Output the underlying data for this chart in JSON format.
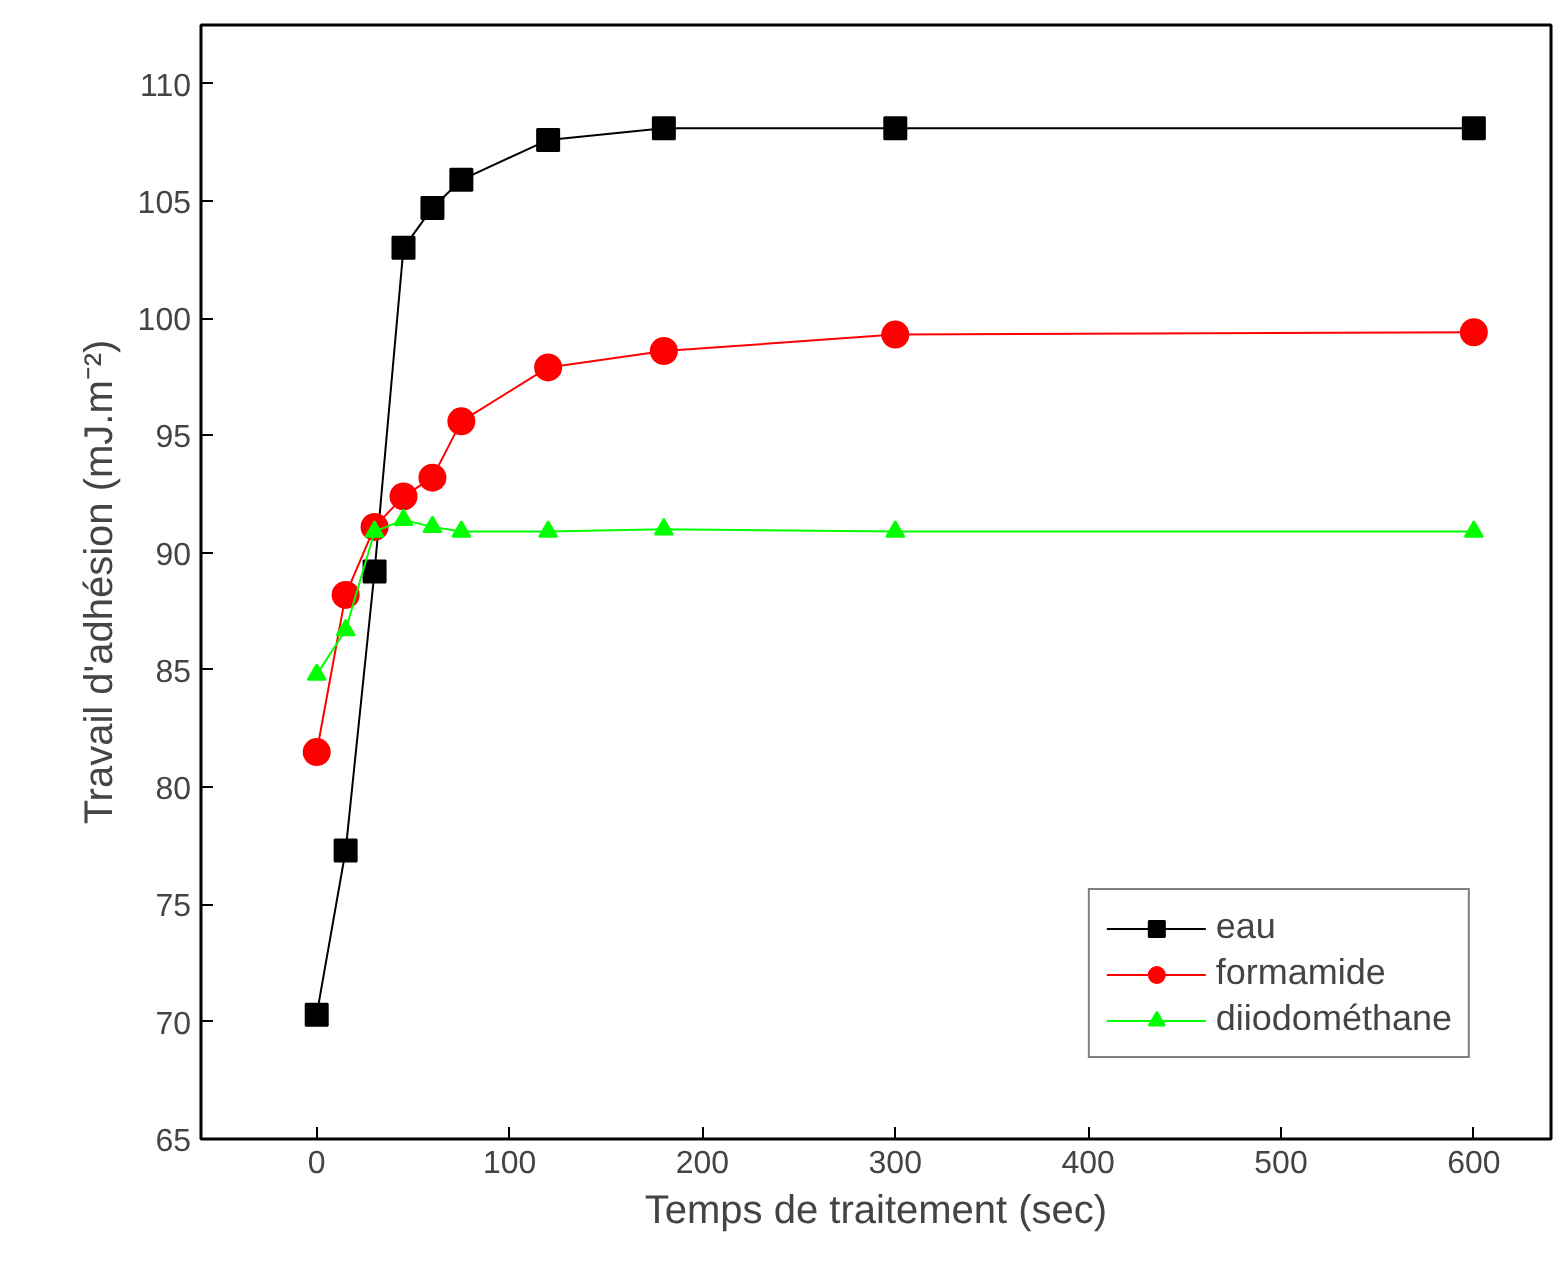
{
  "chart_data": {
    "type": "line",
    "xlabel": "Temps de traitement (sec)",
    "ylabel": "Travail d'adhésion (mJ.m⁻²)",
    "x": [
      0,
      15,
      30,
      45,
      60,
      75,
      120,
      180,
      300,
      600
    ],
    "series": [
      {
        "name": "eau",
        "color": "#000000",
        "marker": "square",
        "values": [
          70.3,
          77.3,
          89.2,
          103.0,
          104.7,
          105.9,
          107.6,
          108.1,
          108.1,
          108.1
        ]
      },
      {
        "name": "formamide",
        "color": "#ff0000",
        "marker": "circle",
        "values": [
          81.5,
          88.2,
          91.1,
          92.4,
          93.2,
          95.6,
          97.9,
          98.6,
          99.3,
          99.4
        ]
      },
      {
        "name": "diiodométhane",
        "color": "#00ff00",
        "marker": "triangle",
        "values": [
          84.8,
          86.7,
          90.9,
          91.4,
          91.1,
          90.9,
          90.9,
          91.0,
          90.9,
          90.9
        ]
      }
    ],
    "xlim": [
      -60,
      640
    ],
    "ylim": [
      65,
      112.5
    ],
    "xticks": [
      0,
      100,
      200,
      300,
      400,
      500,
      600
    ],
    "yticks": [
      65,
      70,
      75,
      80,
      85,
      90,
      95,
      100,
      105,
      110
    ],
    "grid": false,
    "legend": "bottom right",
    "line_style": "solid"
  }
}
